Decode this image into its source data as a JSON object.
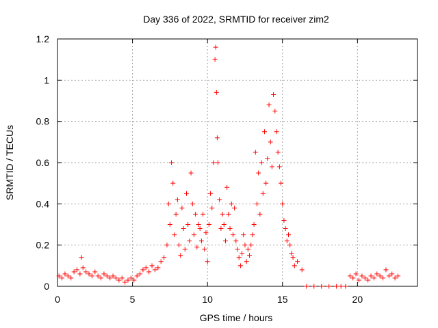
{
  "chart_data": {
    "type": "scatter",
    "title": "Day 336 of 2022, SRMTID for receiver zim2",
    "xlabel": "GPS time / hours",
    "ylabel": "SRMTID / TECUs",
    "xlim": [
      0,
      24
    ],
    "ylim": [
      0,
      1.2
    ],
    "x_ticks": [
      "0",
      "5",
      "10",
      "15",
      "20"
    ],
    "y_ticks": [
      "0",
      "0.2",
      "0.4",
      "0.6",
      "0.8",
      "1",
      "1.2"
    ],
    "grid": true,
    "marker": "+",
    "color": "#ff0000",
    "series": [
      {
        "name": "SRMTID",
        "x": [
          0.1,
          0.3,
          0.5,
          0.7,
          0.9,
          1.1,
          1.3,
          1.5,
          1.6,
          1.7,
          1.9,
          2.1,
          2.3,
          2.5,
          2.7,
          2.9,
          3.1,
          3.3,
          3.5,
          3.7,
          3.9,
          4.1,
          4.3,
          4.5,
          4.7,
          4.9,
          5.1,
          5.3,
          5.5,
          5.7,
          5.9,
          6.1,
          6.3,
          6.5,
          6.7,
          6.9,
          7.1,
          7.3,
          7.4,
          7.5,
          7.6,
          7.7,
          7.8,
          7.9,
          8.0,
          8.1,
          8.2,
          8.3,
          8.4,
          8.5,
          8.6,
          8.7,
          8.8,
          8.9,
          9.0,
          9.1,
          9.2,
          9.3,
          9.4,
          9.5,
          9.6,
          9.7,
          9.8,
          9.9,
          10.0,
          10.1,
          10.2,
          10.3,
          10.4,
          10.5,
          10.55,
          10.6,
          10.65,
          10.7,
          10.8,
          10.9,
          11.0,
          11.1,
          11.2,
          11.3,
          11.4,
          11.5,
          11.6,
          11.7,
          11.8,
          11.9,
          12.0,
          12.1,
          12.2,
          12.3,
          12.4,
          12.5,
          12.6,
          12.7,
          12.8,
          12.9,
          13.0,
          13.1,
          13.2,
          13.3,
          13.4,
          13.5,
          13.6,
          13.7,
          13.8,
          13.9,
          14.0,
          14.1,
          14.2,
          14.3,
          14.4,
          14.5,
          14.6,
          14.7,
          14.8,
          14.9,
          15.0,
          15.1,
          15.2,
          15.3,
          15.4,
          15.5,
          15.6,
          15.7,
          15.8,
          16.0,
          16.3,
          16.6,
          17.1,
          17.6,
          18.1,
          18.6,
          18.9,
          19.2,
          19.5,
          19.7,
          19.9,
          20.1,
          20.3,
          20.5,
          20.7,
          20.9,
          21.1,
          21.3,
          21.5,
          21.7,
          21.9,
          22.1,
          22.3,
          22.5,
          22.7
        ],
        "y": [
          0.05,
          0.04,
          0.06,
          0.05,
          0.04,
          0.07,
          0.08,
          0.06,
          0.14,
          0.09,
          0.07,
          0.06,
          0.05,
          0.07,
          0.05,
          0.04,
          0.06,
          0.05,
          0.04,
          0.05,
          0.04,
          0.03,
          0.04,
          0.02,
          0.03,
          0.04,
          0.03,
          0.05,
          0.06,
          0.08,
          0.09,
          0.07,
          0.1,
          0.08,
          0.09,
          0.12,
          0.14,
          0.2,
          0.4,
          0.3,
          0.6,
          0.5,
          0.25,
          0.35,
          0.42,
          0.2,
          0.15,
          0.38,
          0.28,
          0.18,
          0.45,
          0.3,
          0.22,
          0.55,
          0.4,
          0.25,
          0.35,
          0.19,
          0.3,
          0.28,
          0.22,
          0.35,
          0.18,
          0.26,
          0.12,
          0.3,
          0.45,
          0.38,
          0.6,
          1.1,
          1.16,
          0.94,
          0.72,
          0.6,
          0.42,
          0.28,
          0.35,
          0.3,
          0.22,
          0.48,
          0.35,
          0.28,
          0.4,
          0.25,
          0.38,
          0.22,
          0.18,
          0.14,
          0.1,
          0.16,
          0.25,
          0.2,
          0.12,
          0.18,
          0.15,
          0.2,
          0.25,
          0.3,
          0.65,
          0.4,
          0.55,
          0.35,
          0.6,
          0.45,
          0.75,
          0.5,
          0.62,
          0.88,
          0.7,
          0.58,
          0.93,
          0.85,
          0.75,
          0.65,
          0.58,
          0.5,
          0.4,
          0.32,
          0.28,
          0.22,
          0.25,
          0.2,
          0.16,
          0.14,
          0.1,
          0.12,
          0.08,
          0.0,
          0.0,
          0.0,
          0.0,
          0.0,
          0.0,
          0.0,
          0.05,
          0.04,
          0.06,
          0.03,
          0.05,
          0.04,
          0.03,
          0.05,
          0.04,
          0.06,
          0.05,
          0.04,
          0.08,
          0.05,
          0.06,
          0.04,
          0.05
        ]
      }
    ]
  }
}
